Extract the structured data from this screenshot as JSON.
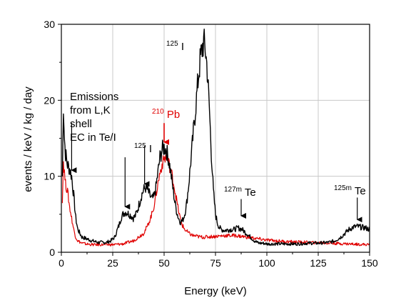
{
  "chart_data": {
    "type": "line",
    "xlabel": "Energy (keV)",
    "ylabel": "events / keV / kg / day",
    "xlim": [
      0,
      150
    ],
    "ylim": [
      0,
      30
    ],
    "x_ticks": [
      "0",
      "25",
      "50",
      "75",
      "100",
      "125",
      "150"
    ],
    "y_ticks": [
      "0",
      "10",
      "20",
      "30"
    ],
    "grid": true,
    "colors": {
      "black": "#000000",
      "red": "#e00000",
      "grid": "#c8c8c8"
    },
    "series": [
      {
        "color": "#000000",
        "x": [
          0.5,
          1,
          1.5,
          2,
          3,
          4,
          5,
          6,
          7,
          8,
          10,
          12,
          15,
          18,
          20,
          22,
          24,
          26,
          27,
          28,
          29,
          30,
          31,
          32,
          33,
          34,
          35,
          36,
          37,
          38,
          39,
          40,
          41,
          42,
          43,
          44,
          45,
          46,
          47,
          48,
          49,
          50,
          51,
          52,
          53,
          54,
          55,
          56,
          57,
          58,
          59,
          60,
          61,
          62,
          63,
          64,
          65,
          66,
          67,
          68,
          69,
          70,
          71,
          72,
          73,
          74,
          75,
          76,
          77,
          78,
          79,
          80,
          82,
          84,
          86,
          88,
          90,
          92,
          94,
          96,
          98,
          100,
          105,
          110,
          115,
          120,
          125,
          130,
          133,
          136,
          138,
          140,
          142,
          144,
          146,
          148,
          150
        ],
        "y": [
          10,
          19.5,
          15,
          13,
          11.5,
          11,
          10,
          7.5,
          4.5,
          3,
          2,
          1.8,
          1.5,
          1.3,
          1.3,
          1.3,
          1.5,
          2,
          2.8,
          3.5,
          4.5,
          5,
          5.3,
          5.2,
          5,
          4.8,
          4.5,
          4.8,
          5.5,
          6.5,
          7.5,
          8.2,
          8.5,
          8.2,
          7.5,
          7,
          7.2,
          8.5,
          10.5,
          12.5,
          13.5,
          13.8,
          13.5,
          12.5,
          11,
          9,
          7,
          5.5,
          4.5,
          4,
          4.2,
          5,
          6.5,
          9,
          12,
          15,
          18,
          21,
          24,
          26,
          27.5,
          27,
          24,
          19,
          13,
          8,
          5,
          3.8,
          3.2,
          3,
          2.9,
          2.9,
          3,
          3,
          3.2,
          3,
          2.5,
          2,
          1.5,
          1.2,
          1.2,
          1.1,
          1.1,
          1.1,
          1.1,
          1.2,
          1.2,
          1.3,
          1.5,
          2,
          2.5,
          3,
          3.3,
          3.4,
          3.3,
          3.2,
          3
        ]
      },
      {
        "color": "#e00000",
        "x": [
          0.5,
          1,
          2,
          3,
          4,
          5,
          6,
          7,
          8,
          10,
          12,
          15,
          20,
          25,
          30,
          35,
          40,
          42,
          44,
          45,
          46,
          47,
          48,
          49,
          50,
          51,
          52,
          53,
          54,
          55,
          56,
          57,
          58,
          59,
          60,
          62,
          64,
          66,
          68,
          70,
          75,
          80,
          85,
          90,
          95,
          100,
          110,
          120,
          130,
          140,
          150
        ],
        "y": [
          7,
          12,
          9,
          8,
          6,
          4.5,
          3,
          2,
          1.5,
          1.2,
          1.1,
          1,
          1,
          1,
          1.1,
          1.5,
          2.5,
          3.5,
          5,
          6,
          7.5,
          9,
          10.5,
          11.5,
          12.3,
          12.5,
          12,
          11,
          10,
          8.5,
          7,
          5.5,
          4.3,
          3.5,
          3,
          2.5,
          2.2,
          2.1,
          2,
          2,
          2.1,
          2.2,
          2.2,
          2,
          1.8,
          1.6,
          1.4,
          1.3,
          1.2,
          1.1,
          1
        ]
      }
    ],
    "annotations": [
      {
        "lines": [
          "Emissions",
          "from L,K",
          "shell",
          "EC in Te/I"
        ],
        "color": "#000000"
      },
      {
        "sup": "125",
        "text": "I",
        "color": "#000000",
        "arrow": {
          "x": 40.5,
          "y_from": 14,
          "y_to": 9
        }
      },
      {
        "sup": "210",
        "text": "Pb",
        "color": "#e00000",
        "arrow": {
          "x": 50,
          "y_from": 17,
          "y_to": 14.5
        }
      },
      {
        "sup": "125",
        "text": "I",
        "color": "#000000",
        "arrow": null
      },
      {
        "sup": "127m",
        "text": "Te",
        "color": "#000000",
        "arrow": {
          "x": 87.5,
          "y_from": 7,
          "y_to": 4.8
        }
      },
      {
        "sup": "125m",
        "text": "Te",
        "color": "#000000",
        "arrow": {
          "x": 144,
          "y_from": 7.2,
          "y_to": 4.3
        }
      }
    ],
    "extra_arrows": [
      {
        "x": 5,
        "y_from": 17,
        "y_to": 10.8,
        "color": "#000000"
      },
      {
        "x": 31,
        "y_from": 12.5,
        "y_to": 6
      }
    ]
  }
}
